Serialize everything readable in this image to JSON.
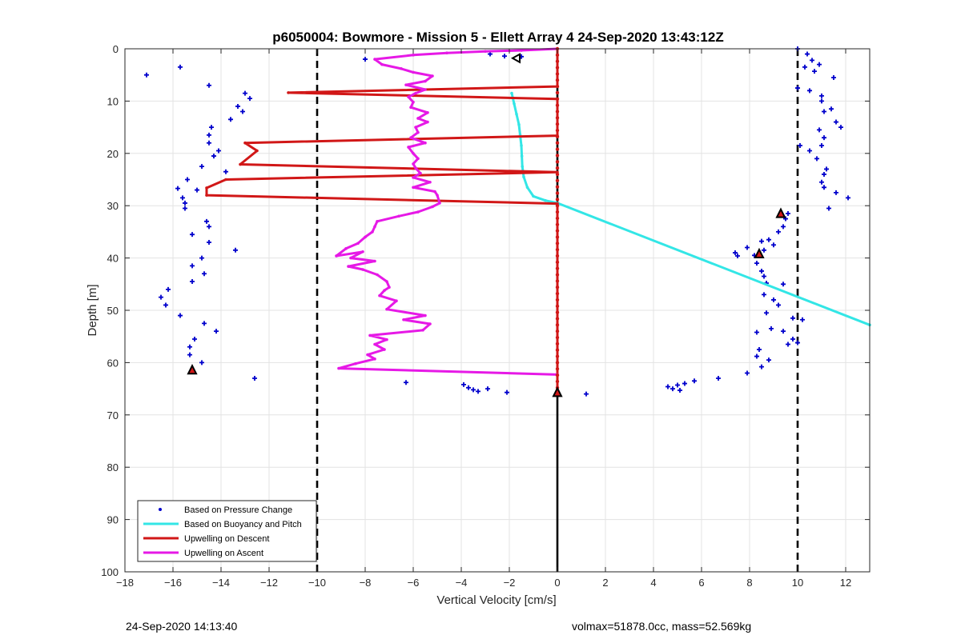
{
  "chart_data": {
    "type": "scatter",
    "title": "p6050004: Bowmore - Mission 5 - Ellett Array 4 24-Sep-2020 13:43:12Z",
    "xlabel": "Vertical Velocity [cm/s]",
    "ylabel": "Depth [m]",
    "xlim": [
      -18,
      13
    ],
    "ylim": [
      100,
      0
    ],
    "y_reversed": true,
    "grid": true,
    "legend_position": "bottom-left",
    "x_ticks": [
      "-18",
      "-16",
      "-14",
      "-12",
      "-10",
      "-8",
      "-6",
      "-4",
      "-2",
      "0",
      "2",
      "4",
      "6",
      "8",
      "10",
      "12"
    ],
    "y_ticks": [
      "0",
      "10",
      "20",
      "30",
      "40",
      "50",
      "60",
      "70",
      "80",
      "90",
      "100"
    ],
    "series": [
      {
        "name": "Based on Pressure Change",
        "style": "points",
        "color": "#0000cc",
        "points": [
          [
            -17.1,
            5
          ],
          [
            -15.7,
            3.5
          ],
          [
            -14.5,
            7
          ],
          [
            -13.0,
            8.5
          ],
          [
            -12.8,
            9.5
          ],
          [
            -13.3,
            11
          ],
          [
            -13.1,
            12
          ],
          [
            -13.6,
            13.5
          ],
          [
            -14.4,
            15
          ],
          [
            -14.5,
            16.5
          ],
          [
            -14.5,
            18
          ],
          [
            -14.1,
            19.5
          ],
          [
            -14.3,
            20.5
          ],
          [
            -14.8,
            22.5
          ],
          [
            -13.8,
            23.5
          ],
          [
            -15.4,
            25
          ],
          [
            -15.8,
            26.7
          ],
          [
            -15.0,
            27
          ],
          [
            -15.6,
            28.5
          ],
          [
            -15.5,
            29.5
          ],
          [
            -15.5,
            30.5
          ],
          [
            -14.6,
            33
          ],
          [
            -14.5,
            34
          ],
          [
            -15.2,
            35.5
          ],
          [
            -14.5,
            37
          ],
          [
            -13.4,
            38.5
          ],
          [
            -14.8,
            40
          ],
          [
            -15.2,
            41.5
          ],
          [
            -14.7,
            43
          ],
          [
            -15.2,
            44.5
          ],
          [
            -16.2,
            46
          ],
          [
            -16.5,
            47.5
          ],
          [
            -16.3,
            49
          ],
          [
            -15.7,
            51
          ],
          [
            -14.7,
            52.5
          ],
          [
            -14.2,
            54
          ],
          [
            -15.1,
            55.5
          ],
          [
            -15.3,
            57
          ],
          [
            -15.3,
            58.5
          ],
          [
            -14.8,
            60
          ],
          [
            -12.6,
            63
          ],
          [
            -8.0,
            2
          ],
          [
            -6.3,
            63.8
          ],
          [
            -3.9,
            64.2
          ],
          [
            -3.7,
            64.8
          ],
          [
            -3.5,
            65.2
          ],
          [
            -3.3,
            65.5
          ],
          [
            -2.9,
            65
          ],
          [
            -2.1,
            65.7
          ],
          [
            -2.8,
            1
          ],
          [
            -2.2,
            1.4
          ],
          [
            -1.5,
            1.5
          ],
          [
            1.2,
            66
          ],
          [
            10.0,
            0
          ],
          [
            10.4,
            1
          ],
          [
            10.6,
            2.2
          ],
          [
            10.9,
            3
          ],
          [
            10.7,
            4.3
          ],
          [
            10.3,
            3.5
          ],
          [
            11.5,
            5.5
          ],
          [
            10.0,
            7.5
          ],
          [
            10.5,
            8
          ],
          [
            11.0,
            9
          ],
          [
            11.0,
            10
          ],
          [
            11.4,
            11.5
          ],
          [
            11.1,
            12
          ],
          [
            11.6,
            14
          ],
          [
            11.8,
            15
          ],
          [
            10.9,
            15.5
          ],
          [
            11.1,
            17
          ],
          [
            11.0,
            18.5
          ],
          [
            10.1,
            18.5
          ],
          [
            10.5,
            19.5
          ],
          [
            10.8,
            21
          ],
          [
            11.2,
            23
          ],
          [
            11.1,
            24
          ],
          [
            11.0,
            25.5
          ],
          [
            11.1,
            26.5
          ],
          [
            11.6,
            27.5
          ],
          [
            12.1,
            28.5
          ],
          [
            11.3,
            30.5
          ],
          [
            9.6,
            31.5
          ],
          [
            9.5,
            32.5
          ],
          [
            9.4,
            34
          ],
          [
            9.2,
            35
          ],
          [
            8.8,
            36.5
          ],
          [
            9.0,
            37.5
          ],
          [
            8.5,
            36.8
          ],
          [
            7.9,
            38
          ],
          [
            8.6,
            38.5
          ],
          [
            8.2,
            39.5
          ],
          [
            7.4,
            39
          ],
          [
            7.5,
            39.6
          ],
          [
            8.3,
            41
          ],
          [
            8.5,
            42.5
          ],
          [
            8.6,
            43.5
          ],
          [
            8.7,
            44.8
          ],
          [
            9.4,
            45
          ],
          [
            8.6,
            47
          ],
          [
            9.0,
            48
          ],
          [
            9.2,
            49
          ],
          [
            8.7,
            50.5
          ],
          [
            9.8,
            51.5
          ],
          [
            10.2,
            51.8
          ],
          [
            8.9,
            53.5
          ],
          [
            9.4,
            54
          ],
          [
            8.3,
            54.2
          ],
          [
            9.8,
            55.5
          ],
          [
            10.0,
            56.2
          ],
          [
            9.6,
            56.5
          ],
          [
            8.4,
            57.5
          ],
          [
            8.3,
            58.8
          ],
          [
            8.8,
            59.5
          ],
          [
            8.5,
            60.8
          ],
          [
            7.9,
            62
          ],
          [
            6.7,
            63
          ],
          [
            5.7,
            63.5
          ],
          [
            5.3,
            64
          ],
          [
            5.0,
            64.3
          ],
          [
            4.6,
            64.6
          ],
          [
            4.8,
            65
          ],
          [
            5.1,
            65.3
          ]
        ]
      },
      {
        "name": "Based on Buoyancy and Pitch",
        "style": "line",
        "color": "#33e6e6",
        "points": [
          [
            -1.9,
            8.5
          ],
          [
            -1.8,
            10.5
          ],
          [
            -1.7,
            12.5
          ],
          [
            -1.6,
            14.5
          ],
          [
            -1.55,
            16.5
          ],
          [
            -1.5,
            18.5
          ],
          [
            -1.48,
            20.5
          ],
          [
            -1.46,
            22.5
          ],
          [
            -1.4,
            24.5
          ],
          [
            -1.25,
            26.5
          ],
          [
            -1.0,
            28.2
          ],
          [
            -0.5,
            29
          ],
          [
            0,
            29.5
          ],
          [
            13,
            52.8
          ]
        ]
      },
      {
        "name": "Upwelling on Descent",
        "style": "line",
        "color": "#d11717",
        "points": [
          [
            0,
            0
          ],
          [
            0,
            7.2
          ],
          [
            -11.2,
            8.4
          ],
          [
            0,
            9.6
          ],
          [
            0,
            16.6
          ],
          [
            -13,
            18
          ],
          [
            -12.5,
            19.5
          ],
          [
            -13.2,
            22.1
          ],
          [
            0,
            23.6
          ],
          [
            -13.8,
            25
          ],
          [
            -14.6,
            26.6
          ],
          [
            -14.6,
            28
          ],
          [
            0,
            29.6
          ],
          [
            0,
            66
          ]
        ]
      },
      {
        "name": "Upwelling on Ascent",
        "style": "line",
        "color": "#e619e6",
        "points": [
          [
            0,
            62.3
          ],
          [
            -9.1,
            61.1
          ],
          [
            -8.4,
            60.2
          ],
          [
            -7.6,
            59.3
          ],
          [
            -7.9,
            58.5
          ],
          [
            -7.2,
            57.5
          ],
          [
            -7.6,
            56.5
          ],
          [
            -7.1,
            55.6
          ],
          [
            -7.8,
            54.8
          ],
          [
            -5.6,
            53.8
          ],
          [
            -5.3,
            52.6
          ],
          [
            -6.4,
            51.8
          ],
          [
            -5.5,
            51
          ],
          [
            -7.1,
            49.8
          ],
          [
            -6.7,
            48.2
          ],
          [
            -7.4,
            47.2
          ],
          [
            -7.2,
            46.2
          ],
          [
            -7.0,
            45.6
          ],
          [
            -7.1,
            44.5
          ],
          [
            -7.5,
            43.2
          ],
          [
            -8.1,
            42.2
          ],
          [
            -8.7,
            41.6
          ],
          [
            -7.6,
            40.6
          ],
          [
            -8.6,
            40
          ],
          [
            -8.1,
            38.8
          ],
          [
            -9.2,
            39.6
          ],
          [
            -8.8,
            38.2
          ],
          [
            -8.3,
            37.2
          ],
          [
            -8.0,
            36
          ],
          [
            -7.7,
            35
          ],
          [
            -7.6,
            34
          ],
          [
            -7.5,
            33
          ],
          [
            -6.6,
            32
          ],
          [
            -5.8,
            31.2
          ],
          [
            -5.2,
            30.2
          ],
          [
            -4.9,
            29.5
          ],
          [
            -5.0,
            28
          ],
          [
            -5.1,
            27.3
          ],
          [
            -6.0,
            26.5
          ],
          [
            -5.3,
            25.5
          ],
          [
            -6.0,
            24.6
          ],
          [
            -5.7,
            23.8
          ],
          [
            -5.9,
            22.8
          ],
          [
            -6.0,
            22
          ],
          [
            -5.8,
            21
          ],
          [
            -6.0,
            20
          ],
          [
            -6.2,
            18.8
          ],
          [
            -5.5,
            18
          ],
          [
            -6.1,
            17
          ],
          [
            -5.8,
            16
          ],
          [
            -5.9,
            15
          ],
          [
            -5.4,
            14
          ],
          [
            -5.8,
            13.3
          ],
          [
            -5.4,
            12.2
          ],
          [
            -6.1,
            11.2
          ],
          [
            -6.0,
            10.2
          ],
          [
            -6.2,
            9.2
          ],
          [
            -5.9,
            8.5
          ],
          [
            -5.5,
            7.8
          ],
          [
            -6.3,
            6.9
          ],
          [
            -5.5,
            6.2
          ],
          [
            -5.2,
            5.2
          ],
          [
            -6.0,
            4.5
          ],
          [
            -6.5,
            3.8
          ],
          [
            -7.3,
            3
          ],
          [
            -7.6,
            2
          ],
          [
            -6.0,
            1.2
          ],
          [
            -4.6,
            0.8
          ],
          [
            -3.0,
            0.5
          ],
          [
            -1.5,
            0.3
          ],
          [
            0,
            0
          ]
        ]
      }
    ],
    "reference_lines": [
      {
        "x": -10,
        "style": "dashed",
        "color": "#000000"
      },
      {
        "x": 10,
        "style": "dashed",
        "color": "#000000"
      },
      {
        "x": 0,
        "style": "solid",
        "color": "#000000"
      }
    ],
    "markers": [
      {
        "shape": "triangle-up",
        "x": -15.2,
        "y": 61.5,
        "fill": "#d11717",
        "stroke": "#000000"
      },
      {
        "shape": "triangle-up",
        "x": 8.4,
        "y": 39.3,
        "fill": "#d11717",
        "stroke": "#000000"
      },
      {
        "shape": "triangle-up",
        "x": 9.3,
        "y": 31.6,
        "fill": "#d11717",
        "stroke": "#000000"
      },
      {
        "shape": "triangle-up",
        "x": 0,
        "y": 65.8,
        "fill": "#d11717",
        "stroke": "#000000"
      },
      {
        "shape": "triangle-left",
        "x": -1.7,
        "y": 1.8,
        "fill": "#ffffff",
        "stroke": "#000000"
      }
    ]
  },
  "footer": {
    "timestamp": "24-Sep-2020 14:13:40",
    "info": "volmax=51878.0cc, mass=52.569kg"
  }
}
